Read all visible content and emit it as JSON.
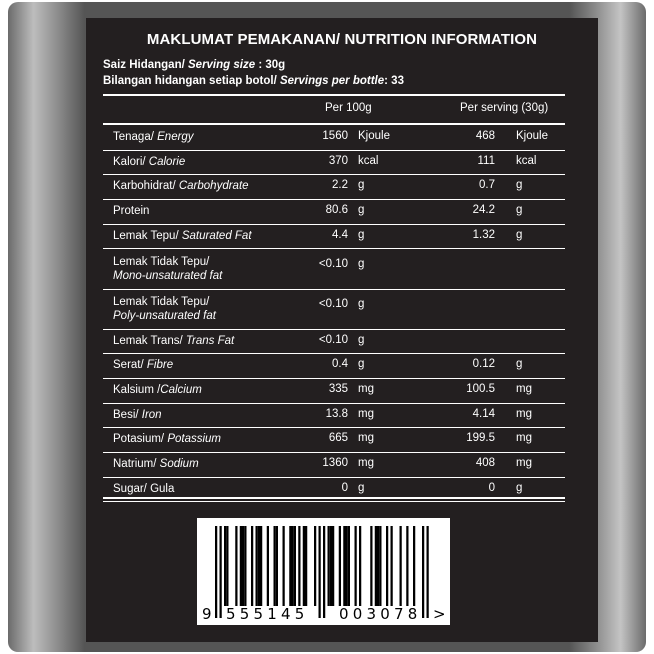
{
  "title": "MAKLUMAT PEMAKANAN/ NUTRITION INFORMATION",
  "serving_size": {
    "label": "Saiz Hidangan/ ",
    "label_en": "Serving size",
    "value": " : 30g"
  },
  "servings": {
    "label": "Bilangan hidangan setiap botol/ ",
    "label_en": "Servings per bottle",
    "value": ": 33"
  },
  "columns": {
    "per100": "Per 100g",
    "per_serving": "Per serving (30g)"
  },
  "rows": [
    {
      "ms": "Tenaga/ ",
      "en": "Energy",
      "v1": "1560",
      "u1": "Kjoule",
      "v2": "468",
      "u2": "Kjoule"
    },
    {
      "ms": "Kalori/ ",
      "en": "Calorie",
      "v1": "370",
      "u1": "kcal",
      "v2": "111",
      "u2": "kcal"
    },
    {
      "ms": "Karbohidrat/ ",
      "en": "Carbohydrate",
      "v1": "2.2",
      "u1": "g",
      "v2": "0.7",
      "u2": "g"
    },
    {
      "ms": "Protein",
      "en": "",
      "v1": "80.6",
      "u1": "g",
      "v2": "24.2",
      "u2": "g"
    },
    {
      "ms": "Lemak Tepu/ ",
      "en": "Saturated Fat",
      "v1": "4.4",
      "u1": "g",
      "v2": "1.32",
      "u2": "g"
    },
    {
      "ms": "Lemak Tidak Tepu/",
      "en": "Mono-unsaturated fat",
      "v1": "<0.10",
      "u1": "g",
      "v2": "",
      "u2": "",
      "two": true
    },
    {
      "ms": "Lemak Tidak Tepu/",
      "en": "Poly-unsaturated fat",
      "v1": "<0.10",
      "u1": "g",
      "v2": "",
      "u2": "",
      "two": true
    },
    {
      "ms": "Lemak Trans/ ",
      "en": "Trans Fat",
      "v1": "<0.10",
      "u1": "g",
      "v2": "",
      "u2": ""
    },
    {
      "ms": "Serat/ ",
      "en": "Fibre",
      "v1": "0.4",
      "u1": "g",
      "v2": "0.12",
      "u2": "g"
    },
    {
      "ms": "Kalsium /",
      "en": "Calcium",
      "v1": "335",
      "u1": "mg",
      "v2": "100.5",
      "u2": "mg"
    },
    {
      "ms": "Besi/ ",
      "en": "Iron",
      "v1": "13.8",
      "u1": "mg",
      "v2": "4.14",
      "u2": "mg"
    },
    {
      "ms": "Potasium/ ",
      "en": "Potassium",
      "v1": "665",
      "u1": "mg",
      "v2": "199.5",
      "u2": "mg"
    },
    {
      "ms": "Natrium/ ",
      "en": "Sodium",
      "v1": "1360",
      "u1": "mg",
      "v2": "408",
      "u2": "mg"
    },
    {
      "ms": "Sugar/ Gula",
      "en": "",
      "v1": "0",
      "u1": "g",
      "v2": "0",
      "u2": "g"
    }
  ],
  "barcode": {
    "number": "9555145003078",
    "first": "9",
    "left": "555145",
    "right": "003078",
    "arrow": ">"
  }
}
